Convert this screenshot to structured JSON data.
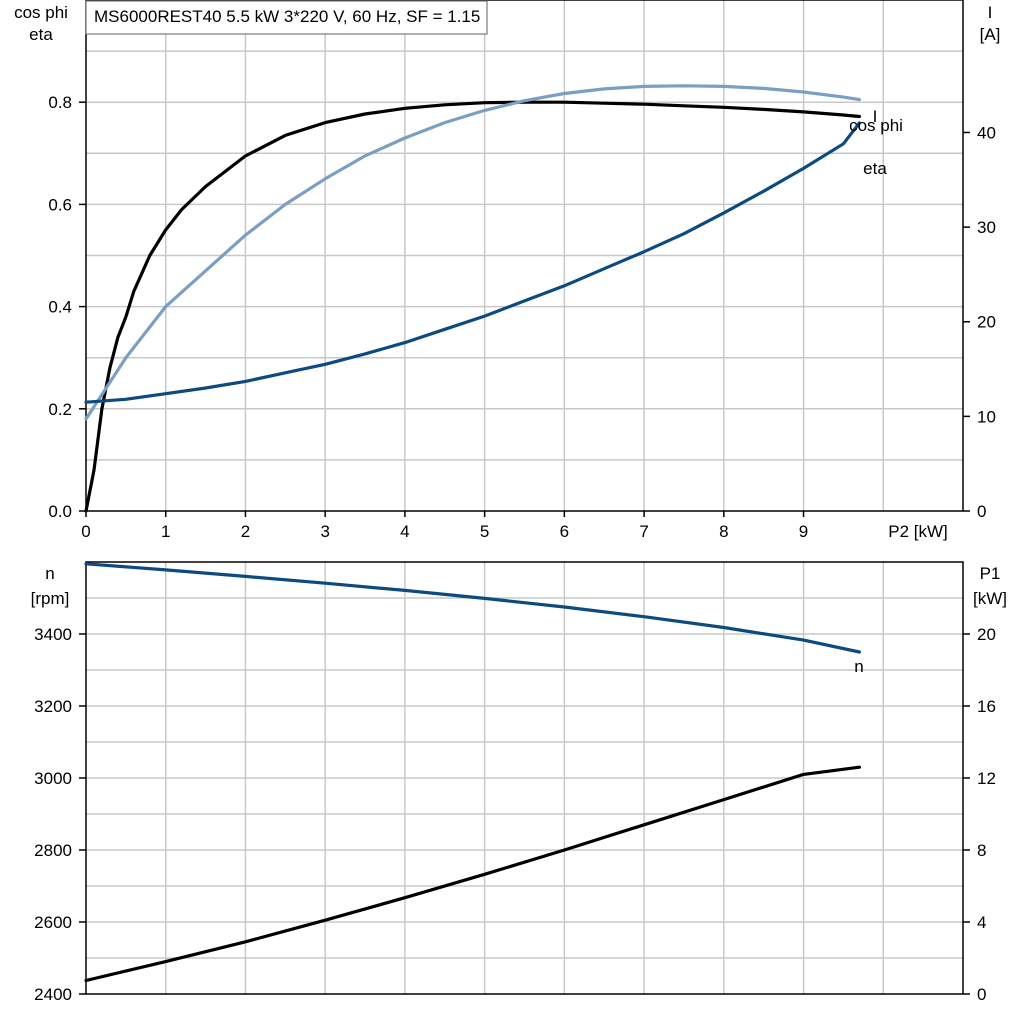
{
  "colors": {
    "grid": "#c8c8c8",
    "axis": "#000000",
    "eta": "#000000",
    "cosphi": "#7a9fc2",
    "current": "#0d4a80",
    "speed": "#0d4a80",
    "p1": "#000000"
  },
  "chart_data": [
    {
      "type": "line",
      "title": "MS6000REST40   5.5 kW   3*220 V, 60 Hz, SF = 1.15",
      "xlabel": "P2 [kW]",
      "x_ticks": [
        "0",
        "1",
        "2",
        "3",
        "4",
        "5",
        "6",
        "7",
        "8",
        "9"
      ],
      "xlim": [
        0,
        11
      ],
      "ylabel_left": [
        "cos phi",
        "eta"
      ],
      "ylim_left": [
        0,
        1.0
      ],
      "y_ticks_left": [
        "0.0",
        "0.2",
        "0.4",
        "0.6",
        "0.8"
      ],
      "ylabel_right": [
        "I",
        "[A]"
      ],
      "ylim_right": [
        0,
        54
      ],
      "y_ticks_right": [
        "0",
        "10",
        "20",
        "30",
        "40"
      ],
      "grid": true,
      "series": [
        {
          "name": "eta",
          "axis": "left",
          "color": "#000000",
          "x": [
            0,
            0.1,
            0.2,
            0.3,
            0.4,
            0.5,
            0.6,
            0.8,
            1.0,
            1.2,
            1.5,
            2.0,
            2.5,
            3.0,
            3.5,
            4.0,
            4.5,
            5.0,
            5.5,
            6.0,
            6.5,
            7.0,
            7.5,
            8.0,
            8.5,
            9.0,
            9.5,
            9.7
          ],
          "y": [
            0.0,
            0.08,
            0.2,
            0.28,
            0.34,
            0.38,
            0.43,
            0.5,
            0.55,
            0.59,
            0.635,
            0.695,
            0.735,
            0.76,
            0.777,
            0.788,
            0.795,
            0.799,
            0.8,
            0.8,
            0.798,
            0.796,
            0.793,
            0.79,
            0.786,
            0.781,
            0.775,
            0.772
          ]
        },
        {
          "name": "cos phi",
          "axis": "left",
          "color": "#7a9fc2",
          "x": [
            0,
            0.5,
            1.0,
            1.5,
            2.0,
            2.5,
            3.0,
            3.5,
            4.0,
            4.5,
            5.0,
            5.5,
            6.0,
            6.5,
            7.0,
            7.5,
            8.0,
            8.5,
            9.0,
            9.5,
            9.7
          ],
          "y": [
            0.18,
            0.3,
            0.4,
            0.47,
            0.54,
            0.6,
            0.65,
            0.695,
            0.73,
            0.76,
            0.784,
            0.803,
            0.817,
            0.826,
            0.831,
            0.832,
            0.831,
            0.827,
            0.82,
            0.81,
            0.805
          ]
        },
        {
          "name": "I",
          "axis": "right",
          "color": "#0d4a80",
          "x": [
            0,
            0.5,
            1.0,
            1.5,
            2.0,
            2.5,
            3.0,
            3.5,
            4.0,
            4.5,
            5.0,
            5.5,
            6.0,
            6.5,
            7.0,
            7.5,
            8.0,
            8.5,
            9.0,
            9.5,
            9.7
          ],
          "y": [
            11.5,
            11.8,
            12.4,
            13.0,
            13.7,
            14.6,
            15.5,
            16.6,
            17.8,
            19.2,
            20.6,
            22.2,
            23.8,
            25.6,
            27.4,
            29.3,
            31.5,
            33.8,
            36.2,
            38.8,
            41.0
          ]
        }
      ],
      "labels": [
        "I",
        "cos phi",
        "eta"
      ]
    },
    {
      "type": "line",
      "xlim": [
        0,
        11
      ],
      "ylabel_left": [
        "n",
        "[rpm]"
      ],
      "ylim_left": [
        2400,
        3600
      ],
      "y_ticks_left": [
        "2400",
        "2600",
        "2800",
        "3000",
        "3200",
        "3400"
      ],
      "ylabel_right": [
        "P1",
        "[kW]"
      ],
      "ylim_right": [
        0,
        24
      ],
      "y_ticks_right": [
        "0",
        "4",
        "8",
        "12",
        "16",
        "20"
      ],
      "grid": true,
      "series": [
        {
          "name": "n",
          "axis": "left",
          "color": "#0d4a80",
          "x": [
            0,
            1,
            2,
            3,
            4,
            5,
            6,
            7,
            8,
            9,
            9.7
          ],
          "y": [
            3595,
            3578,
            3560,
            3541,
            3521,
            3499,
            3475,
            3448,
            3418,
            3383,
            3350
          ]
        },
        {
          "name": "P1",
          "axis": "right",
          "color": "#000000",
          "x": [
            0,
            1,
            2,
            3,
            4,
            5,
            6,
            7,
            8,
            9,
            9.7
          ],
          "y": [
            0.75,
            1.8,
            2.9,
            4.1,
            5.35,
            6.65,
            8.0,
            9.4,
            10.8,
            12.2,
            12.6
          ]
        }
      ],
      "labels": [
        "n"
      ]
    }
  ]
}
